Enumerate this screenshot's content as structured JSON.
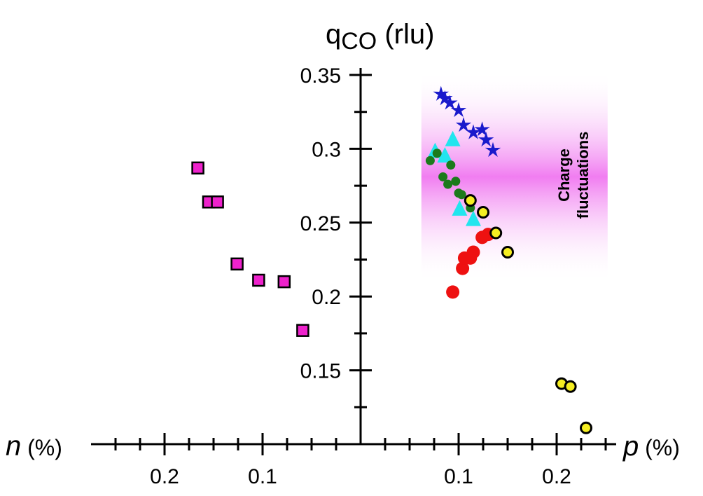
{
  "chart_data": {
    "type": "scatter",
    "title": "",
    "ylabel_main": "q",
    "ylabel_sub": "CO",
    "ylabel_unit": " (rlu)",
    "xlabel_left_main": "n",
    "xlabel_left_unit": " (%)",
    "xlabel_right_main": "p",
    "xlabel_right_unit": " (%)",
    "ylim": [
      0.1,
      0.35
    ],
    "y_ticks": [
      {
        "v": 0.35,
        "label": "0.35"
      },
      {
        "v": 0.3,
        "label": "0.3"
      },
      {
        "v": 0.25,
        "label": "0.25"
      },
      {
        "v": 0.2,
        "label": "0.2"
      },
      {
        "v": 0.15,
        "label": "0.15"
      }
    ],
    "x_ticks": [
      {
        "v": -0.2,
        "label": "0.2"
      },
      {
        "v": -0.1,
        "label": "0.1"
      },
      {
        "v": 0.1,
        "label": "0.1"
      },
      {
        "v": 0.2,
        "label": "0.2"
      }
    ],
    "xlim": [
      -0.27,
      0.25
    ],
    "band": {
      "label_line1": "Charge",
      "label_line2": "fluctuations",
      "x_range": [
        0.062,
        0.252
      ],
      "y_range": [
        0.209,
        0.353
      ],
      "color": "#ee66ee"
    },
    "series": [
      {
        "marker": "square",
        "color": "#ee22cc",
        "points": [
          [
            -0.166,
            0.287
          ],
          [
            -0.155,
            0.264
          ],
          [
            -0.146,
            0.264
          ],
          [
            -0.126,
            0.222
          ],
          [
            -0.104,
            0.211
          ],
          [
            -0.078,
            0.21
          ],
          [
            -0.059,
            0.177
          ]
        ]
      },
      {
        "marker": "star",
        "color": "#1a1acc",
        "points": [
          [
            0.082,
            0.337
          ],
          [
            0.086,
            0.334
          ],
          [
            0.091,
            0.331
          ],
          [
            0.1,
            0.326
          ],
          [
            0.105,
            0.316
          ],
          [
            0.115,
            0.311
          ],
          [
            0.124,
            0.313
          ],
          [
            0.128,
            0.306
          ],
          [
            0.135,
            0.299
          ]
        ]
      },
      {
        "marker": "triangle",
        "color": "#22e5ee",
        "points": [
          [
            0.076,
            0.298
          ],
          [
            0.086,
            0.295
          ],
          [
            0.094,
            0.306
          ],
          [
            0.101,
            0.259
          ],
          [
            0.115,
            0.252
          ]
        ]
      },
      {
        "marker": "circle-small",
        "color": "#1c7a1c",
        "points": [
          [
            0.071,
            0.292
          ],
          [
            0.078,
            0.297
          ],
          [
            0.084,
            0.281
          ],
          [
            0.089,
            0.276
          ],
          [
            0.092,
            0.289
          ],
          [
            0.097,
            0.278
          ],
          [
            0.1,
            0.27
          ],
          [
            0.103,
            0.269
          ],
          [
            0.112,
            0.26
          ]
        ]
      },
      {
        "marker": "circle",
        "color": "#ee1111",
        "points": [
          [
            0.094,
            0.203
          ],
          [
            0.104,
            0.219
          ],
          [
            0.106,
            0.226
          ],
          [
            0.115,
            0.23
          ],
          [
            0.112,
            0.226
          ],
          [
            0.13,
            0.242
          ],
          [
            0.124,
            0.24
          ]
        ]
      },
      {
        "marker": "circle-outlined",
        "color": "#f5ee22",
        "points": [
          [
            0.112,
            0.265
          ],
          [
            0.125,
            0.257
          ],
          [
            0.138,
            0.243
          ],
          [
            0.15,
            0.23
          ],
          [
            0.205,
            0.141
          ],
          [
            0.214,
            0.139
          ],
          [
            0.23,
            0.111
          ]
        ]
      }
    ]
  }
}
